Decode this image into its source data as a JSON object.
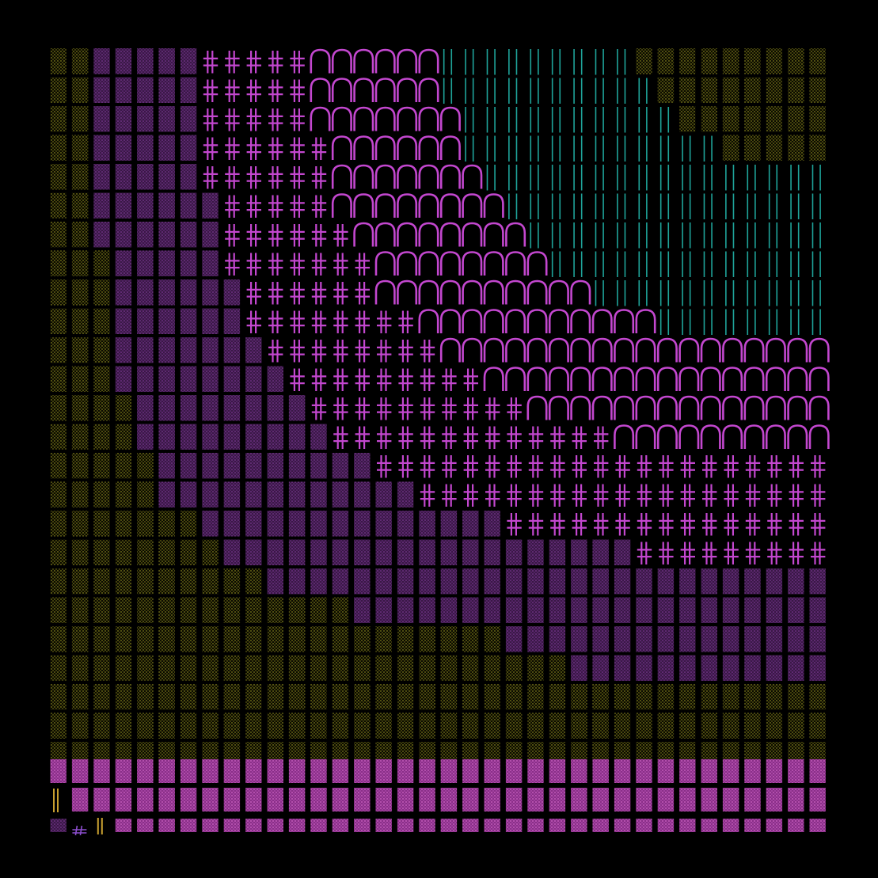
{
  "artwork": {
    "background": "#000000",
    "palette": {
      "olive": "#8d8a1c",
      "olive_dot": "#b8b42a",
      "purple_dark": "#5a2a6e",
      "purple_dot": "#8a3fa6",
      "magenta": "#c347cf",
      "magenta_fill": "#9a3a96",
      "magenta_dot": "#d066c8",
      "teal": "#1fa49a",
      "gold": "#c9a030",
      "violet": "#8d4fcf"
    },
    "grid": {
      "columns": 36,
      "rows": 27
    },
    "glyphs": [
      "dotted-rectangle",
      "double-cross",
      "arch",
      "vertical-lines"
    ]
  }
}
